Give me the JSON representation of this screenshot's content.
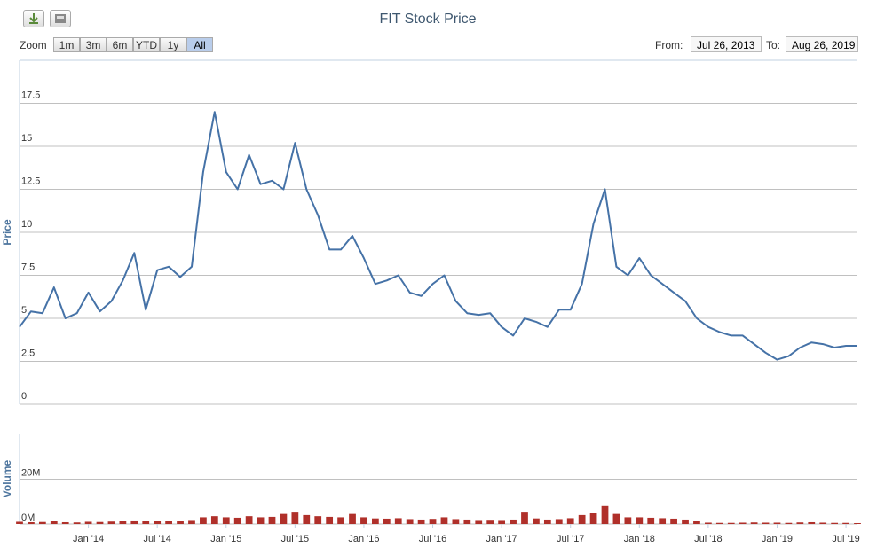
{
  "chart_data": {
    "type": "line",
    "title": "FIT Stock Price",
    "ylabel": "Price",
    "y2label": "Volume",
    "x": [
      "2013-07",
      "2013-08",
      "2013-09",
      "2013-10",
      "2013-11",
      "2013-12",
      "2014-01",
      "2014-02",
      "2014-03",
      "2014-04",
      "2014-05",
      "2014-06",
      "2014-07",
      "2014-08",
      "2014-09",
      "2014-10",
      "2014-11",
      "2014-12",
      "2015-01",
      "2015-02",
      "2015-03",
      "2015-04",
      "2015-05",
      "2015-06",
      "2015-07",
      "2015-08",
      "2015-09",
      "2015-10",
      "2015-11",
      "2015-12",
      "2016-01",
      "2016-02",
      "2016-03",
      "2016-04",
      "2016-05",
      "2016-06",
      "2016-07",
      "2016-08",
      "2016-09",
      "2016-10",
      "2016-11",
      "2016-12",
      "2017-01",
      "2017-02",
      "2017-03",
      "2017-04",
      "2017-05",
      "2017-06",
      "2017-07",
      "2017-08",
      "2017-09",
      "2017-10",
      "2017-11",
      "2017-12",
      "2018-01",
      "2018-02",
      "2018-03",
      "2018-04",
      "2018-05",
      "2018-06",
      "2018-07",
      "2018-08",
      "2018-09",
      "2018-10",
      "2018-11",
      "2018-12",
      "2019-01",
      "2019-02",
      "2019-03",
      "2019-04",
      "2019-05",
      "2019-06",
      "2019-07",
      "2019-08"
    ],
    "series": [
      {
        "type": "line",
        "color": "#4572a7",
        "values": [
          4.5,
          5.4,
          5.3,
          6.8,
          5.0,
          5.3,
          6.5,
          5.4,
          6.0,
          7.2,
          8.8,
          5.5,
          7.8,
          8.0,
          7.4,
          8.0,
          13.5,
          17.0,
          13.5,
          12.5,
          14.5,
          12.8,
          13.0,
          12.5,
          15.2,
          12.5,
          11.0,
          9.0,
          9.0,
          9.8,
          8.5,
          7.0,
          7.2,
          7.5,
          6.5,
          6.3,
          7.0,
          7.5,
          6.0,
          5.3,
          5.2,
          5.3,
          4.5,
          4.0,
          5.0,
          4.8,
          4.5,
          5.5,
          5.5,
          7.0,
          10.5,
          12.5,
          8.0,
          7.5,
          8.5,
          7.5,
          7.0,
          6.5,
          6.0,
          5.0,
          4.5,
          4.2,
          4.0,
          4.0,
          3.5,
          3.0,
          2.6,
          2.8,
          3.3,
          3.6,
          3.5,
          3.3,
          3.4,
          3.4
        ]
      },
      {
        "type": "bar",
        "axis": "y2",
        "color": "#b0302a",
        "values": [
          1000000,
          800000,
          900000,
          1200000,
          800000,
          700000,
          1000000,
          900000,
          1100000,
          1300000,
          1600000,
          1500000,
          1200000,
          1300000,
          1500000,
          1800000,
          3000000,
          3500000,
          3000000,
          2800000,
          3500000,
          3000000,
          3200000,
          4500000,
          5500000,
          4000000,
          3500000,
          3200000,
          3000000,
          4500000,
          3000000,
          2500000,
          2400000,
          2600000,
          2200000,
          2000000,
          2300000,
          3000000,
          2200000,
          2000000,
          1800000,
          1900000,
          1800000,
          2000000,
          5500000,
          2500000,
          2000000,
          2200000,
          2600000,
          4000000,
          5000000,
          8000000,
          4500000,
          3000000,
          3000000,
          2800000,
          2600000,
          2400000,
          2000000,
          1200000,
          600000,
          500000,
          500000,
          600000,
          700000,
          600000,
          600000,
          500000,
          700000,
          800000,
          600000,
          500000,
          500000,
          400000
        ]
      }
    ],
    "xlim": [
      "2013-07",
      "2019-08"
    ],
    "xticks": [
      {
        "value": "2014-01",
        "label": "Jan '14"
      },
      {
        "value": "2014-07",
        "label": "Jul '14"
      },
      {
        "value": "2015-01",
        "label": "Jan '15"
      },
      {
        "value": "2015-07",
        "label": "Jul '15"
      },
      {
        "value": "2016-01",
        "label": "Jan '16"
      },
      {
        "value": "2016-07",
        "label": "Jul '16"
      },
      {
        "value": "2017-01",
        "label": "Jan '17"
      },
      {
        "value": "2017-07",
        "label": "Jul '17"
      },
      {
        "value": "2018-01",
        "label": "Jan '18"
      },
      {
        "value": "2018-07",
        "label": "Jul '18"
      },
      {
        "value": "2019-01",
        "label": "Jan '19"
      },
      {
        "value": "2019-07",
        "label": "Jul '19"
      }
    ],
    "ylim": [
      0,
      20
    ],
    "yticks": [
      0,
      2.5,
      5,
      7.5,
      10,
      12.5,
      15,
      17.5
    ],
    "y2lim": [
      0,
      40000000
    ],
    "y2ticks": [
      {
        "value": 0,
        "label": "0M"
      },
      {
        "value": 20000000,
        "label": "20M"
      }
    ],
    "grid": true
  },
  "range_selector": {
    "zoom_label": "Zoom",
    "buttons": [
      "1m",
      "3m",
      "6m",
      "YTD",
      "1y",
      "All"
    ],
    "selected": 5,
    "from_label": "From:",
    "from": "Jul 26, 2013",
    "to_label": "To:",
    "to": "Aug 26, 2019"
  }
}
